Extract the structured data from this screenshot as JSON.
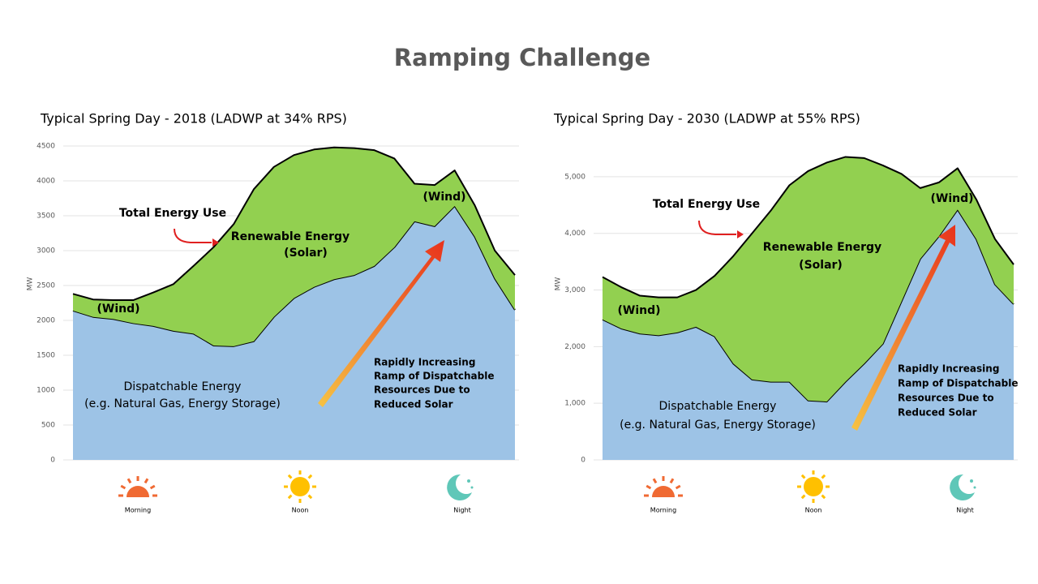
{
  "title": "Ramping Challenge",
  "chart_data": [
    {
      "type": "area",
      "title": "Typical Spring Day - 2018 (LADWP at 34% RPS)",
      "ylabel": "MW",
      "ylim": [
        0,
        4500
      ],
      "yticks": [
        0,
        500,
        1000,
        1500,
        2000,
        2500,
        3000,
        3500,
        4000,
        4500
      ],
      "grid": true,
      "series": [
        {
          "color": "#9dc3e6",
          "values": [
            2140,
            2050,
            2020,
            1960,
            1920,
            1850,
            1810,
            1640,
            1630,
            1700,
            2050,
            2320,
            2480,
            2590,
            2650,
            2780,
            3050,
            3420,
            3350,
            3640,
            3200,
            2600,
            2150
          ]
        },
        {
          "color": "#92d050",
          "values": [
            240,
            250,
            270,
            330,
            480,
            670,
            970,
            1410,
            1750,
            2180,
            2150,
            2050,
            1970,
            1890,
            1820,
            1660,
            1270,
            540,
            590,
            510,
            450,
            400,
            500
          ]
        }
      ],
      "annotations": [
        "Total Energy Use",
        "Renewable Energy",
        "(Solar)",
        "(Wind)",
        "(Wind)",
        "Dispatchable  Energy",
        "(e.g. Natural Gas, Energy Storage)",
        "Rapidly Increasing",
        "Ramp of Dispatchable",
        "Resources Due to",
        "Reduced Solar"
      ],
      "x_labels": [
        "Morning",
        "Noon",
        "Night"
      ]
    },
    {
      "type": "area",
      "title": "Typical Spring Day - 2030 (LADWP at 55% RPS)",
      "ylabel": "MW",
      "ylim": [
        0,
        5500
      ],
      "yticks": [
        0,
        {
          "value": 1000,
          "label": "1,000"
        },
        {
          "value": 2000,
          "label": "2,000"
        },
        {
          "value": 3000,
          "label": "3,000"
        },
        {
          "value": 4000,
          "label": "4,000"
        },
        {
          "value": 5000,
          "label": "5,000"
        }
      ],
      "grid": true,
      "series": [
        {
          "color": "#9dc3e6",
          "values": [
            2480,
            2320,
            2230,
            2200,
            2250,
            2350,
            2180,
            1700,
            1420,
            1380,
            1380,
            1050,
            1030,
            1380,
            1700,
            2050,
            2800,
            3550,
            3950,
            4420,
            3900,
            3100,
            2750
          ]
        },
        {
          "color": "#92d050",
          "values": [
            750,
            730,
            670,
            670,
            620,
            650,
            1070,
            1900,
            2580,
            3020,
            3470,
            4050,
            4220,
            3970,
            3630,
            3150,
            2250,
            1250,
            950,
            730,
            700,
            800,
            700
          ]
        }
      ],
      "annotations": [
        "Total Energy Use",
        "Renewable Energy",
        "(Solar)",
        "(Wind)",
        "(Wind)",
        "Dispatchable  Energy",
        "(e.g. Natural Gas, Energy Storage)",
        "Rapidly Increasing",
        "Ramp of Dispatchable",
        "Resources Due to",
        "Reduced Solar"
      ],
      "x_labels": [
        "Morning",
        "Noon",
        "Night"
      ]
    }
  ]
}
